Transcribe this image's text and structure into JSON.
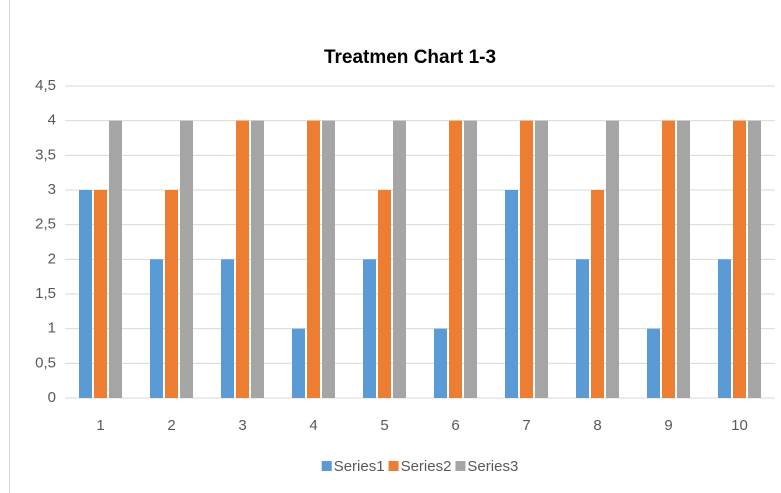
{
  "chart_data": {
    "type": "bar",
    "title": "Treatmen Chart 1-3",
    "categories": [
      "1",
      "2",
      "3",
      "4",
      "5",
      "6",
      "7",
      "8",
      "9",
      "10"
    ],
    "series": [
      {
        "name": "Series1",
        "color": "#5b9bd5",
        "values": [
          3,
          2,
          2,
          1,
          2,
          1,
          3,
          2,
          1,
          2
        ]
      },
      {
        "name": "Series2",
        "color": "#ed7d31",
        "values": [
          3,
          3,
          4,
          4,
          3,
          4,
          4,
          3,
          4,
          4
        ]
      },
      {
        "name": "Series3",
        "color": "#a5a5a5",
        "values": [
          4,
          4,
          4,
          4,
          4,
          4,
          4,
          4,
          4,
          4
        ]
      }
    ],
    "ylim": [
      0,
      4.5
    ],
    "yticks": [
      0,
      {
        "value": 0.5,
        "label": "0,5"
      },
      1,
      {
        "value": 1.5,
        "label": "1,5"
      },
      2,
      {
        "value": 2.5,
        "label": "2,5"
      },
      3,
      {
        "value": 3.5,
        "label": "3,5"
      },
      4,
      {
        "value": 4.5,
        "label": "4,5"
      }
    ],
    "grid": true,
    "legend": "bottom"
  }
}
